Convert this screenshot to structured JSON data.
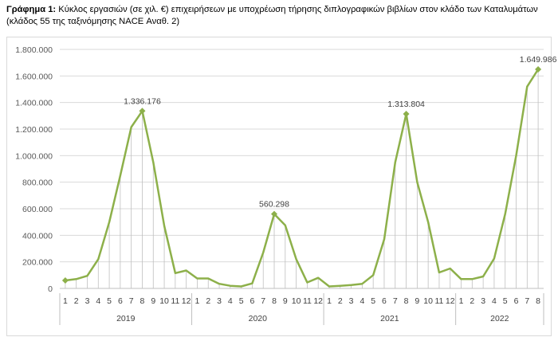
{
  "caption": {
    "label": "Γράφημα 1:",
    "text": "Κύκλος εργασιών (σε χιλ. €) επιχειρήσεων με υποχρέωση τήρησης διπλογραφικών βιβλίων στον κλάδο των Καταλυμάτων (κλάδος 55 της ταξινόμησης NACE Αναθ. 2)"
  },
  "chart_data": {
    "type": "line",
    "title": "",
    "xlabel": "",
    "ylabel": "",
    "ylim": [
      0,
      1800000
    ],
    "y_ticks": [
      0,
      200000,
      400000,
      600000,
      800000,
      1000000,
      1200000,
      1400000,
      1600000,
      1800000
    ],
    "y_tick_labels": [
      "0",
      "200.000",
      "400.000",
      "600.000",
      "800.000",
      "1.000.000",
      "1.200.000",
      "1.400.000",
      "1.600.000",
      "1.800.000"
    ],
    "grid": "horizontal",
    "legend": "none",
    "line_color": "#8db04a",
    "years": [
      {
        "label": "2019",
        "months": 12
      },
      {
        "label": "2020",
        "months": 12
      },
      {
        "label": "2021",
        "months": 12
      },
      {
        "label": "2022",
        "months": 8
      }
    ],
    "categories": [
      "1",
      "2",
      "3",
      "4",
      "5",
      "6",
      "7",
      "8",
      "9",
      "10",
      "11",
      "12",
      "1",
      "2",
      "3",
      "4",
      "5",
      "6",
      "7",
      "8",
      "9",
      "10",
      "11",
      "12",
      "1",
      "2",
      "3",
      "4",
      "5",
      "6",
      "7",
      "8",
      "9",
      "10",
      "11",
      "12",
      "1",
      "2",
      "3",
      "4",
      "5",
      "6",
      "7",
      "8"
    ],
    "values": [
      60000,
      70000,
      95000,
      220000,
      500000,
      850000,
      1215000,
      1336176,
      950000,
      470000,
      115000,
      135000,
      75000,
      75000,
      35000,
      20000,
      15000,
      38000,
      270000,
      560298,
      475000,
      220000,
      45000,
      80000,
      15000,
      20000,
      25000,
      35000,
      100000,
      370000,
      950000,
      1313804,
      800000,
      500000,
      120000,
      150000,
      70000,
      70000,
      90000,
      225000,
      560000,
      1000000,
      1520000,
      1649986
    ],
    "markers": [
      {
        "index": 0,
        "label": ""
      },
      {
        "index": 7,
        "label": "1.336.176"
      },
      {
        "index": 19,
        "label": "560.298"
      },
      {
        "index": 31,
        "label": "1.313.804"
      },
      {
        "index": 43,
        "label": "1.649.986"
      }
    ]
  }
}
